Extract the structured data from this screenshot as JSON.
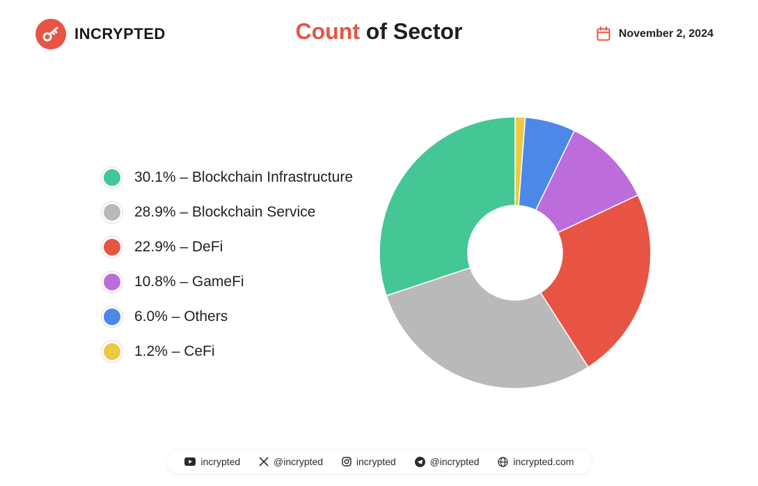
{
  "header": {
    "logo_text": "INCRYPTED",
    "title_accent": "Count",
    "title_rest": " of Sector",
    "date": "November 2, 2024"
  },
  "colors": {
    "brand": "#e85443"
  },
  "chart_data": {
    "type": "pie",
    "title": "Count of Sector",
    "donut": true,
    "legend_position": "left",
    "slices": [
      {
        "label": "30.1% – Blockchain Infrastructure",
        "name": "Blockchain Infrastructure",
        "value": 30.1,
        "color": "#44c795"
      },
      {
        "label": "28.9% – Blockchain Service",
        "name": "Blockchain Service",
        "value": 28.9,
        "color": "#b9b9b9"
      },
      {
        "label": "22.9% – DeFi",
        "name": "DeFi",
        "value": 22.9,
        "color": "#e85443"
      },
      {
        "label": "10.8% – GameFi",
        "name": "GameFi",
        "value": 10.8,
        "color": "#bd6ddb"
      },
      {
        "label": "6.0% – Others",
        "name": "Others",
        "value": 6.0,
        "color": "#4b88e8"
      },
      {
        "label": "1.2% – CeFi",
        "name": "CeFi",
        "value": 1.2,
        "color": "#ecc845"
      }
    ]
  },
  "footer": {
    "youtube": "incrypted",
    "x": "@incrypted",
    "instagram": "incrypted",
    "telegram": "@incrypted",
    "website": "incrypted.com"
  }
}
